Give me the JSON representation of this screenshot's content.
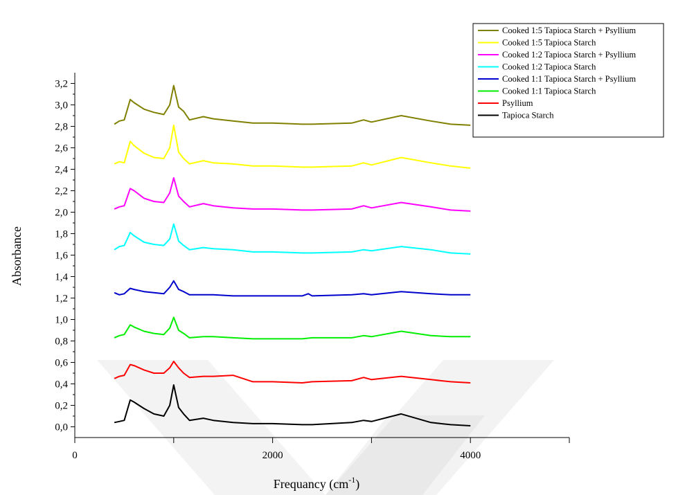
{
  "chart_data": {
    "type": "line",
    "title": "",
    "xlabel": "Frequancy (cm",
    "xlabel_superscript": "-1",
    "xlabel_suffix": ")",
    "ylabel": "Absorbance",
    "xlim": [
      0,
      5000
    ],
    "ylim": [
      -0.1,
      3.3
    ],
    "x_ticks": [
      0,
      2000,
      4000
    ],
    "x_tick_labels": [
      "0",
      "2000",
      "4000"
    ],
    "y_ticks": [
      0.0,
      0.2,
      0.4,
      0.6,
      0.8,
      1.0,
      1.2,
      1.4,
      1.6,
      1.8,
      2.0,
      2.2,
      2.4,
      2.6,
      2.8,
      3.0,
      3.2
    ],
    "y_tick_labels": [
      "0,0",
      "0,2",
      "0,4",
      "0,6",
      "0,8",
      "1,0",
      "1,2",
      "1,4",
      "1,6",
      "1,8",
      "2,0",
      "2,2",
      "2,4",
      "2,6",
      "2,8",
      "3,0",
      "3,2"
    ],
    "grid": false,
    "legend_position": "top-right",
    "series": [
      {
        "name": "Cooked 1:5 Tapioca Starch + Psyllium",
        "color": "#808000",
        "x": [
          400,
          450,
          500,
          560,
          600,
          700,
          800,
          900,
          960,
          1000,
          1050,
          1100,
          1160,
          1300,
          1400,
          1600,
          1800,
          2000,
          2300,
          2400,
          2800,
          2920,
          3000,
          3300,
          3600,
          3800,
          4000
        ],
        "y": [
          2.82,
          2.85,
          2.86,
          3.05,
          3.02,
          2.96,
          2.93,
          2.91,
          3.0,
          3.18,
          2.98,
          2.94,
          2.86,
          2.89,
          2.87,
          2.85,
          2.83,
          2.83,
          2.82,
          2.82,
          2.83,
          2.86,
          2.84,
          2.9,
          2.85,
          2.82,
          2.81
        ]
      },
      {
        "name": "Cooked 1:5 Tapioca Starch",
        "color": "#ffff00",
        "x": [
          400,
          450,
          500,
          560,
          600,
          700,
          800,
          900,
          960,
          1000,
          1050,
          1100,
          1160,
          1300,
          1400,
          1600,
          1800,
          2000,
          2300,
          2400,
          2800,
          2920,
          3000,
          3300,
          3600,
          3800,
          4000
        ],
        "y": [
          2.45,
          2.47,
          2.46,
          2.66,
          2.62,
          2.55,
          2.51,
          2.5,
          2.6,
          2.81,
          2.56,
          2.5,
          2.45,
          2.48,
          2.46,
          2.45,
          2.43,
          2.43,
          2.42,
          2.42,
          2.43,
          2.46,
          2.44,
          2.51,
          2.46,
          2.43,
          2.41
        ]
      },
      {
        "name": "Cooked 1:2 Tapioca Starch + Psyllium",
        "color": "#ff00ff",
        "x": [
          400,
          450,
          500,
          560,
          600,
          700,
          800,
          900,
          960,
          1000,
          1050,
          1100,
          1160,
          1300,
          1400,
          1600,
          1800,
          2000,
          2300,
          2400,
          2800,
          2920,
          3000,
          3300,
          3600,
          3800,
          4000
        ],
        "y": [
          2.03,
          2.05,
          2.06,
          2.22,
          2.2,
          2.13,
          2.1,
          2.09,
          2.18,
          2.32,
          2.15,
          2.1,
          2.05,
          2.08,
          2.06,
          2.04,
          2.03,
          2.03,
          2.02,
          2.02,
          2.03,
          2.06,
          2.04,
          2.09,
          2.05,
          2.02,
          2.01
        ]
      },
      {
        "name": "Cooked 1:2 Tapioca Starch",
        "color": "#00ffff",
        "x": [
          400,
          450,
          500,
          560,
          600,
          700,
          800,
          900,
          960,
          1000,
          1050,
          1100,
          1160,
          1300,
          1400,
          1600,
          1800,
          2000,
          2300,
          2400,
          2800,
          2920,
          3000,
          3300,
          3600,
          3800,
          4000
        ],
        "y": [
          1.65,
          1.68,
          1.69,
          1.81,
          1.78,
          1.72,
          1.7,
          1.69,
          1.75,
          1.89,
          1.73,
          1.69,
          1.65,
          1.67,
          1.66,
          1.65,
          1.63,
          1.63,
          1.62,
          1.62,
          1.63,
          1.65,
          1.64,
          1.68,
          1.65,
          1.62,
          1.61
        ]
      },
      {
        "name": "Cooked 1:1 Tapioca Starch + Psyllium",
        "color": "#0000cd",
        "x": [
          400,
          450,
          500,
          560,
          600,
          700,
          800,
          900,
          960,
          1000,
          1050,
          1100,
          1160,
          1300,
          1400,
          1600,
          1800,
          2000,
          2300,
          2360,
          2400,
          2800,
          2920,
          3000,
          3300,
          3600,
          3800,
          4000
        ],
        "y": [
          1.25,
          1.23,
          1.24,
          1.29,
          1.28,
          1.26,
          1.25,
          1.24,
          1.3,
          1.36,
          1.28,
          1.26,
          1.23,
          1.23,
          1.23,
          1.22,
          1.22,
          1.22,
          1.22,
          1.24,
          1.22,
          1.23,
          1.24,
          1.23,
          1.26,
          1.24,
          1.23,
          1.23
        ]
      },
      {
        "name": "Cooked 1:1 Tapioca Starch",
        "color": "#00ee00",
        "x": [
          400,
          450,
          500,
          560,
          600,
          700,
          800,
          900,
          960,
          1000,
          1050,
          1100,
          1160,
          1300,
          1400,
          1600,
          1800,
          2000,
          2300,
          2400,
          2800,
          2920,
          3000,
          3300,
          3600,
          3800,
          4000
        ],
        "y": [
          0.83,
          0.85,
          0.86,
          0.95,
          0.93,
          0.89,
          0.87,
          0.86,
          0.92,
          1.02,
          0.9,
          0.87,
          0.83,
          0.84,
          0.84,
          0.83,
          0.82,
          0.82,
          0.82,
          0.83,
          0.83,
          0.85,
          0.84,
          0.89,
          0.85,
          0.84,
          0.84
        ]
      },
      {
        "name": "Psyllium",
        "color": "#ff0000",
        "x": [
          400,
          450,
          500,
          560,
          600,
          700,
          800,
          900,
          960,
          1000,
          1050,
          1100,
          1160,
          1300,
          1400,
          1600,
          1800,
          2000,
          2300,
          2400,
          2800,
          2920,
          3000,
          3300,
          3600,
          3800,
          4000
        ],
        "y": [
          0.45,
          0.47,
          0.48,
          0.58,
          0.57,
          0.53,
          0.5,
          0.5,
          0.55,
          0.61,
          0.55,
          0.5,
          0.46,
          0.47,
          0.47,
          0.48,
          0.42,
          0.42,
          0.41,
          0.42,
          0.43,
          0.46,
          0.44,
          0.47,
          0.44,
          0.42,
          0.41
        ]
      },
      {
        "name": "Tapioca Starch",
        "color": "#000000",
        "x": [
          400,
          450,
          500,
          560,
          600,
          650,
          700,
          800,
          900,
          960,
          1000,
          1050,
          1100,
          1160,
          1300,
          1400,
          1600,
          1800,
          2000,
          2300,
          2400,
          2800,
          2920,
          3000,
          3300,
          3600,
          3800,
          4000
        ],
        "y": [
          0.04,
          0.05,
          0.06,
          0.25,
          0.23,
          0.2,
          0.17,
          0.12,
          0.1,
          0.2,
          0.39,
          0.18,
          0.12,
          0.06,
          0.08,
          0.06,
          0.04,
          0.03,
          0.03,
          0.02,
          0.02,
          0.04,
          0.06,
          0.05,
          0.12,
          0.04,
          0.02,
          0.01
        ]
      }
    ]
  }
}
